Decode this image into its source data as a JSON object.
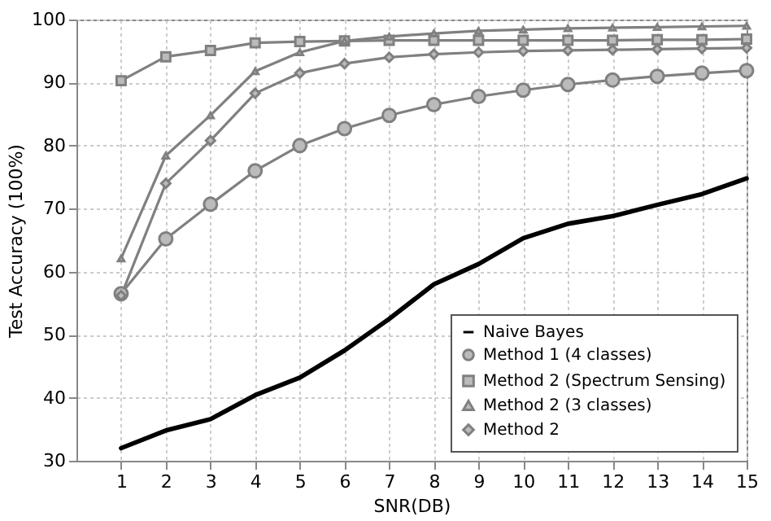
{
  "chart_data": {
    "type": "line",
    "xlabel": "SNR(DB)",
    "ylabel": "Test Accuracy (100%)",
    "x": [
      1,
      2,
      3,
      4,
      5,
      6,
      7,
      8,
      9,
      10,
      11,
      12,
      13,
      14,
      15
    ],
    "xlim": [
      0,
      15
    ],
    "xticks": [
      1,
      2,
      3,
      4,
      5,
      6,
      7,
      8,
      9,
      10,
      11,
      12,
      13,
      14,
      15
    ],
    "ylim": [
      30,
      100
    ],
    "yticks": [
      30,
      40,
      50,
      60,
      70,
      80,
      90,
      100
    ],
    "grid": true,
    "legend": "bottom right",
    "line_style": "solid",
    "series": [
      {
        "name": "Naive Bayes",
        "color": "#000000",
        "marker": "none",
        "values": [
          32,
          34.8,
          36.6,
          40.4,
          43.2,
          47.5,
          52.5,
          58,
          61.2,
          65.3,
          67.6,
          68.8,
          70.6,
          72.3,
          74.8
        ]
      },
      {
        "name": "Method 1 (4 classes)",
        "color": "#808080",
        "marker": "circle",
        "values": [
          56.5,
          65.2,
          70.7,
          76,
          80,
          82.7,
          84.8,
          86.5,
          87.8,
          88.8,
          89.7,
          90.4,
          91,
          91.5,
          91.9
        ]
      },
      {
        "name": "Method 2 (Spectrum Sensing)",
        "color": "#808080",
        "marker": "square",
        "values": [
          90.3,
          94.1,
          95.1,
          96.3,
          96.5,
          96.6,
          96.7,
          96.7,
          96.7,
          96.7,
          96.7,
          96.7,
          96.8,
          96.8,
          96.9
        ]
      },
      {
        "name": "Method 2 (3 classes)",
        "color": "#808080",
        "marker": "triangle",
        "values": [
          62.1,
          78.4,
          84.8,
          91.8,
          94.8,
          96.6,
          97.3,
          97.8,
          98.2,
          98.4,
          98.6,
          98.7,
          98.8,
          98.9,
          99
        ]
      },
      {
        "name": "Method 2",
        "color": "#808080",
        "marker": "diamond",
        "values": [
          56.2,
          74,
          80.8,
          88.3,
          91.5,
          93,
          94,
          94.5,
          94.8,
          95,
          95.1,
          95.2,
          95.3,
          95.4,
          95.5
        ]
      }
    ]
  }
}
